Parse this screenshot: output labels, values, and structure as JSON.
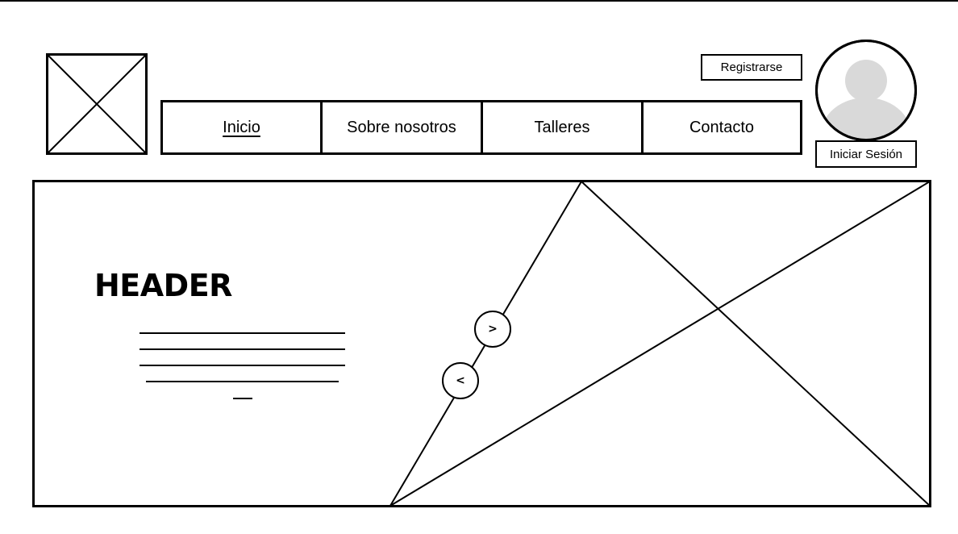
{
  "nav": {
    "items": [
      {
        "label": "Inicio",
        "active": true
      },
      {
        "label": "Sobre nosotros",
        "active": false
      },
      {
        "label": "Talleres",
        "active": false
      },
      {
        "label": "Contacto",
        "active": false
      }
    ]
  },
  "account": {
    "register_label": "Registrarse",
    "login_label": "Iniciar Sesión"
  },
  "hero": {
    "title": "HEADER",
    "prev_label": "<",
    "next_label": ">"
  },
  "icons": {
    "logo": "image-placeholder-icon",
    "avatar": "user-avatar-icon",
    "hero_image": "image-placeholder-icon"
  },
  "colors": {
    "stroke": "#000000",
    "avatar_fill": "#d9d9d9",
    "background": "#ffffff"
  }
}
